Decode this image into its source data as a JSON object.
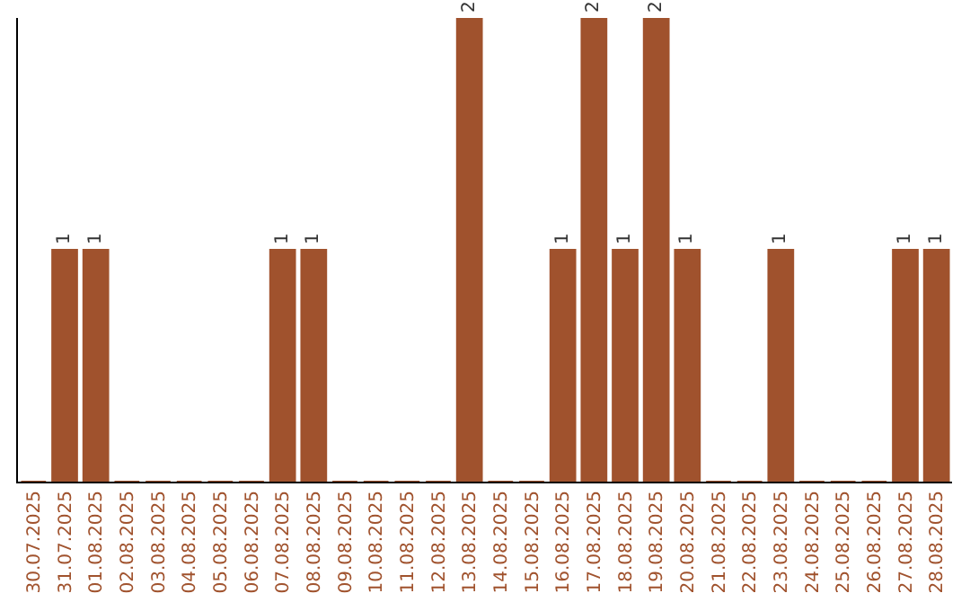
{
  "chart_data": {
    "type": "bar",
    "categories": [
      "30.07.2025",
      "31.07.2025",
      "01.08.2025",
      "02.08.2025",
      "03.08.2025",
      "04.08.2025",
      "05.08.2025",
      "06.08.2025",
      "07.08.2025",
      "08.08.2025",
      "09.08.2025",
      "10.08.2025",
      "11.08.2025",
      "12.08.2025",
      "13.08.2025",
      "14.08.2025",
      "15.08.2025",
      "16.08.2025",
      "17.08.2025",
      "18.08.2025",
      "19.08.2025",
      "20.08.2025",
      "21.08.2025",
      "22.08.2025",
      "23.08.2025",
      "24.08.2025",
      "25.08.2025",
      "26.08.2025",
      "27.08.2025",
      "28.08.2025"
    ],
    "values": [
      0,
      1,
      1,
      0,
      0,
      0,
      0,
      0,
      1,
      1,
      0,
      0,
      0,
      0,
      2,
      0,
      0,
      1,
      2,
      1,
      2,
      1,
      0,
      0,
      1,
      0,
      0,
      0,
      1,
      1
    ],
    "value_labels": [
      null,
      "1",
      "1",
      null,
      null,
      null,
      null,
      null,
      "1",
      "1",
      null,
      null,
      null,
      null,
      "2",
      null,
      null,
      "1",
      "2",
      "1",
      "2",
      "1",
      null,
      null,
      "1",
      null,
      null,
      null,
      "1",
      "1"
    ],
    "color": "#a0522d",
    "tick_labels": "x"
  }
}
